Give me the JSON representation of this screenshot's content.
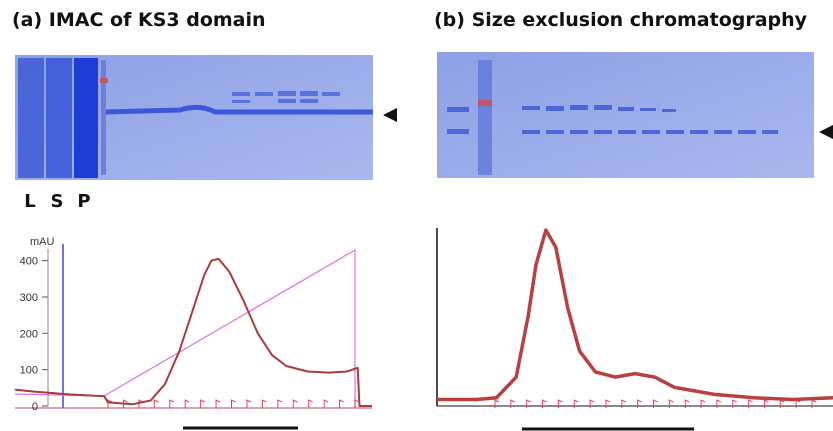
{
  "chart_data": [
    {
      "type": "line",
      "title": "(a) IMAC of KS3 domain",
      "annotations": [
        "L",
        "S",
        "P"
      ],
      "ylabel": "mAU",
      "x": [
        0,
        5,
        10,
        15,
        25,
        26,
        33,
        38,
        42,
        46,
        50,
        53,
        55,
        57,
        60,
        64,
        68,
        72,
        76,
        82,
        88,
        93,
        96,
        96.5,
        100
      ],
      "values": [
        45,
        40,
        36,
        32,
        27,
        10,
        5,
        15,
        60,
        150,
        270,
        360,
        400,
        405,
        370,
        290,
        200,
        140,
        110,
        95,
        92,
        95,
        105,
        0,
        0
      ],
      "color": "#a83c3c",
      "xlim": [
        0,
        100
      ],
      "ylim": [
        0,
        410
      ],
      "yticks": [
        0,
        100,
        200,
        300,
        400
      ]
    },
    {
      "type": "line",
      "title": "(b) Size exclusion chromatography",
      "x": [
        0,
        10,
        15,
        20,
        23,
        25,
        27.5,
        30,
        33,
        36,
        40,
        45,
        50,
        55,
        60,
        70,
        80,
        90,
        100
      ],
      "values": [
        2,
        2,
        3,
        15,
        50,
        80,
        100,
        90,
        55,
        30,
        18,
        15,
        17,
        15,
        9,
        5,
        3,
        2,
        3
      ],
      "color": "#b8403f",
      "xlim": [
        0,
        100
      ],
      "ylim": [
        0,
        100
      ]
    }
  ]
}
